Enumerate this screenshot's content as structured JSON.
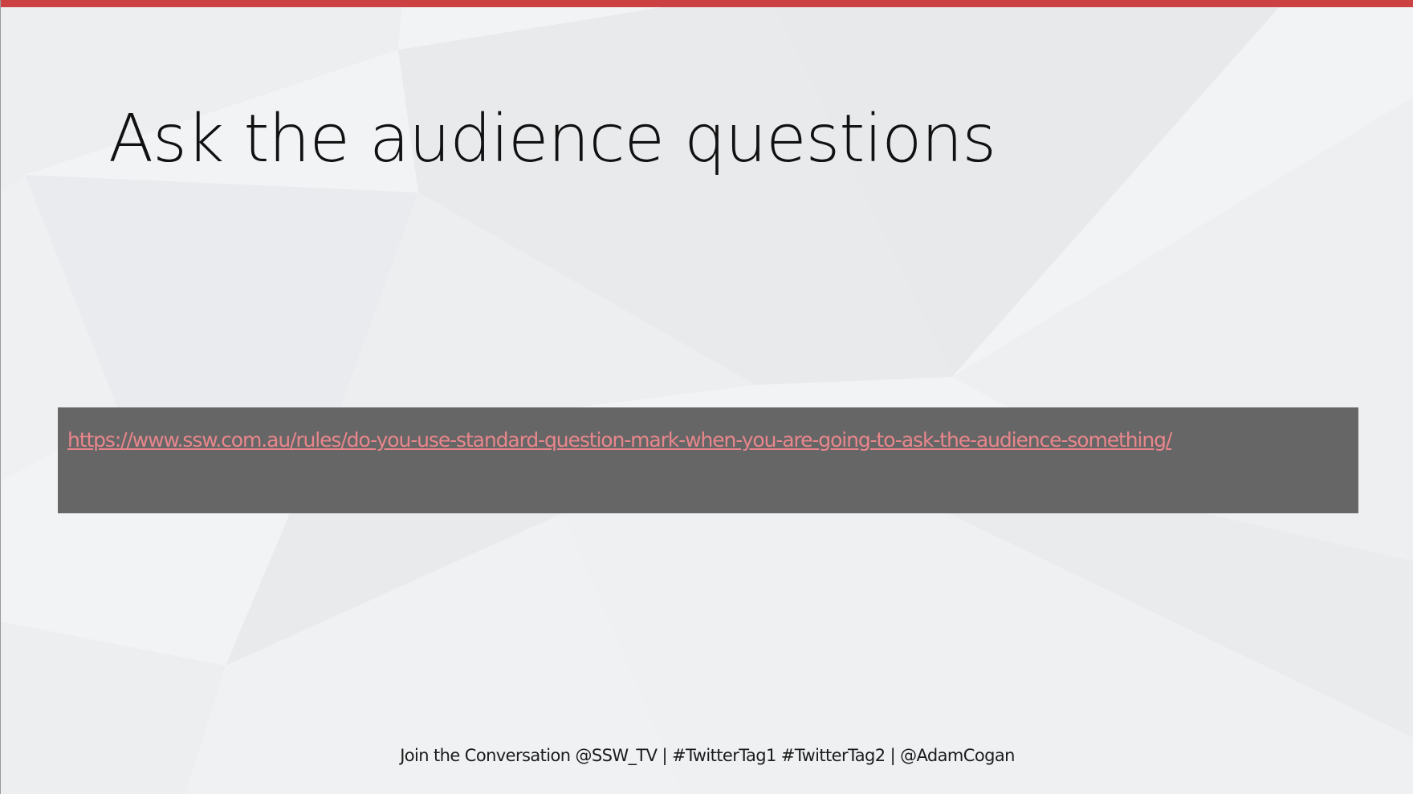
{
  "slide": {
    "title": "Ask the audience questions",
    "link": {
      "text": "https://www.ssw.com.au/rules/do-you-use-standard-question-mark-when-you-are-going-to-ask-the-audience-something/"
    },
    "footer": "Join the Conversation @SSW_TV | #TwitterTag1 #TwitterTag2 | @AdamCogan"
  },
  "colors": {
    "accent_bar": "#cc4141",
    "background": "#f2f3f5",
    "link_box": "#666666",
    "link": "#e8868c"
  }
}
